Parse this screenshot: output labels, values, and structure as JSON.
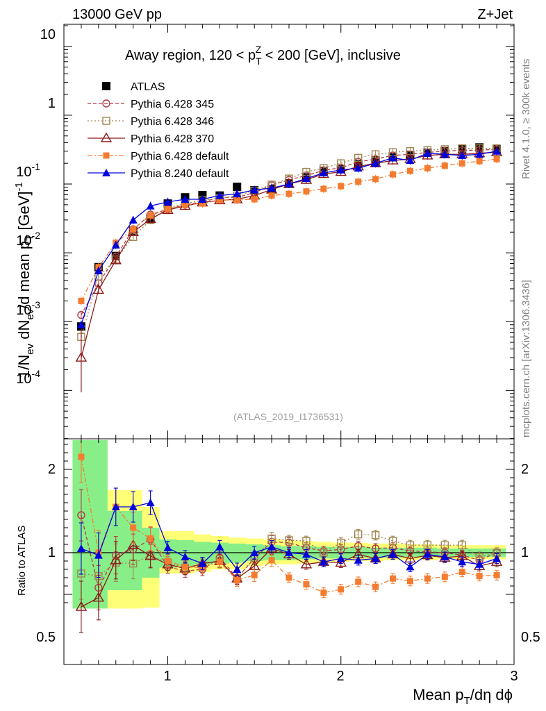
{
  "header": {
    "left": "13000 GeV pp",
    "right": "Z+Jet"
  },
  "side": {
    "top": "Rivet 4.1.0, ≥ 300k events",
    "bottom": "mcplots.cern.ch [arXiv:1306.3436]"
  },
  "chart_data": {
    "type": "line",
    "title_parts": [
      "Away region, 120 < p",
      "T",
      "Z",
      " < 200 [GeV], inclusive"
    ],
    "watermark": "(ATLAS_2019_I1736531)",
    "ylabel_parts": [
      "1/N",
      "ev",
      " dN",
      "ev",
      "/d mean p",
      "T",
      " [GeV]",
      "-1"
    ],
    "xlabel_parts": [
      "Mean p",
      "T",
      "/dη dϕ"
    ],
    "ratio_ylabel": "Ratio to ATLAS",
    "xlim": [
      0.4,
      3.0
    ],
    "ylim": [
      1e-05,
      15
    ],
    "ratio_ylim": [
      0.33,
      2.35
    ],
    "x_ticks": [
      "1",
      "2",
      "3"
    ],
    "y_ticks": [
      {
        "base": "10",
        "exp": "-4"
      },
      {
        "base": "10",
        "exp": "-3"
      },
      {
        "base": "10",
        "exp": "-2"
      },
      {
        "base": "10",
        "exp": "-1"
      },
      {
        "base": "1",
        "exp": ""
      },
      {
        "base": "10",
        "exp": ""
      }
    ],
    "ratio_ticks": [
      "0.5",
      "1",
      "2"
    ],
    "x": [
      0.5,
      0.6,
      0.7,
      0.8,
      0.9,
      1.0,
      1.1,
      1.2,
      1.3,
      1.4,
      1.5,
      1.6,
      1.7,
      1.8,
      1.9,
      2.0,
      2.1,
      2.2,
      2.3,
      2.4,
      2.5,
      2.6,
      2.7,
      2.8,
      2.9
    ],
    "bands": {
      "yellow_lo": [
        0.33,
        0.33,
        0.33,
        0.33,
        0.34,
        0.75,
        0.75,
        0.77,
        0.8,
        0.8,
        0.84,
        0.86,
        0.86,
        0.87,
        0.88,
        0.89,
        0.9,
        0.9,
        0.91,
        0.91,
        0.91,
        0.92,
        0.92,
        0.92,
        0.92
      ],
      "yellow_hi": [
        2.35,
        2.35,
        1.75,
        1.75,
        1.55,
        1.26,
        1.26,
        1.22,
        1.2,
        1.18,
        1.17,
        1.16,
        1.15,
        1.14,
        1.13,
        1.12,
        1.12,
        1.11,
        1.11,
        1.1,
        1.1,
        1.09,
        1.09,
        1.09,
        1.09
      ],
      "green_lo": [
        0.33,
        0.33,
        0.55,
        0.55,
        0.7,
        0.82,
        0.84,
        0.86,
        0.87,
        0.88,
        0.9,
        0.91,
        0.91,
        0.92,
        0.93,
        0.93,
        0.94,
        0.94,
        0.94,
        0.95,
        0.95,
        0.95,
        0.95,
        0.95,
        0.95
      ],
      "green_hi": [
        2.35,
        2.35,
        1.5,
        1.5,
        1.3,
        1.16,
        1.15,
        1.13,
        1.12,
        1.11,
        1.1,
        1.09,
        1.08,
        1.08,
        1.07,
        1.07,
        1.07,
        1.06,
        1.06,
        1.06,
        1.06,
        1.05,
        1.05,
        1.05,
        1.05
      ]
    },
    "series": [
      {
        "name": "ATLAS",
        "color": "#000000",
        "marker": "square-filled",
        "dash": "",
        "values": [
          0.00085,
          0.0062,
          0.009,
          0.021,
          0.031,
          0.052,
          0.064,
          0.069,
          0.068,
          0.091,
          0.081,
          0.085,
          0.102,
          0.125,
          0.155,
          0.165,
          0.195,
          0.22,
          0.245,
          0.265,
          0.285,
          0.3,
          0.32,
          0.34,
          0.32
        ],
        "ratio": []
      },
      {
        "name": "Pythia 6.428 345",
        "color": "#b03a48",
        "marker": "circle-open",
        "dash": "5,3",
        "values": [
          0.00125,
          0.0036,
          0.0088,
          0.022,
          0.036,
          0.043,
          0.05,
          0.055,
          0.064,
          0.064,
          0.075,
          0.096,
          0.115,
          0.133,
          0.158,
          0.172,
          0.21,
          0.23,
          0.26,
          0.27,
          0.288,
          0.3,
          0.31,
          0.31,
          0.32
        ],
        "ratio": [
          1.45,
          0.58,
          0.97,
          1.04,
          1.16,
          0.83,
          0.78,
          0.8,
          0.94,
          0.7,
          0.93,
          1.13,
          1.12,
          1.06,
          1.02,
          1.04,
          1.08,
          1.05,
          1.06,
          1.02,
          1.01,
          1.0,
          0.97,
          0.91,
          1.0
        ]
      },
      {
        "name": "Pythia 6.428 346",
        "color": "#a08650",
        "marker": "square-open",
        "dash": "2,3",
        "values": [
          0.0006,
          0.0045,
          0.008,
          0.017,
          0.03,
          0.045,
          0.052,
          0.058,
          0.062,
          0.068,
          0.08,
          0.098,
          0.12,
          0.15,
          0.17,
          0.2,
          0.24,
          0.27,
          0.29,
          0.3,
          0.31,
          0.32,
          0.33,
          0.33,
          0.33
        ],
        "ratio": [
          0.75,
          0.72,
          0.88,
          0.87,
          0.97,
          0.88,
          0.82,
          0.85,
          0.9,
          0.69,
          0.93,
          1.17,
          1.15,
          1.14,
          1.0,
          1.12,
          1.22,
          1.21,
          1.14,
          1.09,
          1.09,
          1.09,
          1.09,
          0.95,
          1.0
        ]
      },
      {
        "name": "Pythia 6.428 370",
        "color": "#8b1a1a",
        "marker": "triangle-open",
        "dash": "",
        "values": [
          0.0003,
          0.0029,
          0.0078,
          0.02,
          0.031,
          0.042,
          0.048,
          0.054,
          0.058,
          0.06,
          0.068,
          0.083,
          0.1,
          0.115,
          0.14,
          0.15,
          0.18,
          0.2,
          0.22,
          0.23,
          0.26,
          0.27,
          0.27,
          0.28,
          0.29
        ],
        "ratio": [
          0.35,
          0.46,
          0.91,
          1.09,
          0.96,
          0.86,
          0.81,
          0.87,
          0.9,
          0.69,
          0.84,
          1.05,
          0.98,
          0.86,
          0.89,
          0.88,
          0.98,
          0.93,
          0.98,
          0.93,
          0.97,
          0.94,
          0.96,
          0.84,
          0.89
        ]
      },
      {
        "name": "Pythia 6.428 default",
        "color": "#f47c30",
        "marker": "square-filled-small",
        "dash": "7,3,2,3",
        "values": [
          0.002,
          0.0062,
          0.014,
          0.022,
          0.035,
          0.043,
          0.05,
          0.052,
          0.058,
          0.059,
          0.06,
          0.068,
          0.072,
          0.078,
          0.085,
          0.093,
          0.108,
          0.118,
          0.138,
          0.155,
          0.17,
          0.185,
          0.2,
          0.215,
          0.23
        ],
        "ratio": [
          2.15,
          1.0,
          1.55,
          1.3,
          1.17,
          0.9,
          0.83,
          0.82,
          0.89,
          0.67,
          0.73,
          0.91,
          0.7,
          0.62,
          0.52,
          0.56,
          0.65,
          0.59,
          0.69,
          0.66,
          0.69,
          0.71,
          0.77,
          0.72,
          0.73
        ]
      },
      {
        "name": "Pythia 8.240 default",
        "color": "#0000dd",
        "marker": "triangle-filled",
        "dash": "",
        "values": [
          0.0009,
          0.0055,
          0.013,
          0.03,
          0.048,
          0.055,
          0.06,
          0.06,
          0.068,
          0.072,
          0.082,
          0.087,
          0.1,
          0.12,
          0.145,
          0.16,
          0.17,
          0.2,
          0.24,
          0.22,
          0.28,
          0.27,
          0.26,
          0.27,
          0.3
        ],
        "ratio": [
          1.05,
          0.97,
          1.55,
          1.55,
          1.6,
          1.06,
          0.95,
          0.87,
          1.07,
          0.8,
          1.0,
          1.07,
          1.0,
          0.98,
          0.89,
          0.93,
          0.91,
          0.93,
          0.98,
          0.83,
          0.98,
          0.95,
          0.89,
          0.86,
          0.93
        ]
      }
    ]
  }
}
